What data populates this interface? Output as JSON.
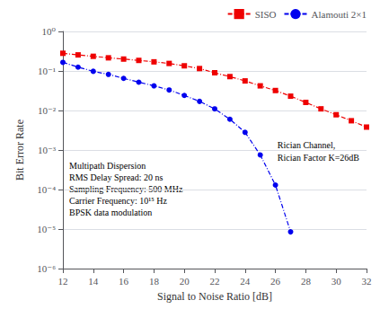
{
  "chart_data": {
    "type": "line",
    "xlabel": "Signal to Noise Ratio [dB]",
    "ylabel": "Bit Error Rate",
    "log": "y",
    "grid": "y",
    "legend": "upper right",
    "xlim": [
      12,
      32
    ],
    "xticks": [
      12,
      14,
      16,
      18,
      20,
      22,
      24,
      26,
      28,
      30,
      32
    ],
    "ylim": [
      1e-06,
      1
    ],
    "yticks": [
      {
        "value": 1e-06,
        "label": "10⁻⁶"
      },
      {
        "value": 1e-05,
        "label": "10⁻⁵"
      },
      {
        "value": 0.0001,
        "label": "10⁻⁴"
      },
      {
        "value": 0.001,
        "label": "10⁻³"
      },
      {
        "value": 0.01,
        "label": "10⁻²"
      },
      {
        "value": 0.1,
        "label": "10⁻¹"
      },
      {
        "value": 1,
        "label": "10⁰"
      }
    ],
    "annotations": [
      "Rician Channel,\nRician Factor K=26dB",
      "Multipath Dispersion\nRMS Delay Spread: 20 ns\nSampling Frequency: 500 MHz\nCarrier Frequency: 10¹⁵ Hz\nBPSK data modulation"
    ],
    "series": [
      {
        "name": "SISO",
        "color": "#ee0000",
        "marker": "square",
        "line_style": "dashdot",
        "x": [
          12,
          13,
          14,
          15,
          16,
          17,
          18,
          19,
          20,
          21,
          22,
          23,
          24,
          25,
          26,
          27,
          28,
          29,
          30,
          31,
          32
        ],
        "values": [
          0.28,
          0.255,
          0.235,
          0.215,
          0.2,
          0.185,
          0.17,
          0.155,
          0.135,
          0.115,
          0.09,
          0.072,
          0.056,
          0.042,
          0.032,
          0.023,
          0.016,
          0.011,
          0.0078,
          0.0055,
          0.0038
        ]
      },
      {
        "name": "Alamouti 2×1",
        "color": "#0000ee",
        "marker": "circle",
        "line_style": "dashdot",
        "x": [
          12,
          13,
          14,
          15,
          16,
          17,
          18,
          19,
          20,
          21,
          22,
          23,
          24,
          25,
          26,
          27
        ],
        "values": [
          0.165,
          0.125,
          0.098,
          0.082,
          0.065,
          0.052,
          0.042,
          0.033,
          0.024,
          0.017,
          0.011,
          0.006,
          0.0028,
          0.00075,
          0.00013,
          8.5e-06
        ]
      }
    ]
  }
}
